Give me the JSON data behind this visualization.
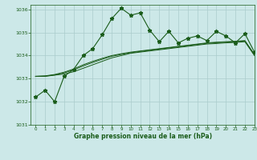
{
  "title": "Graphe pression niveau de la mer (hPa)",
  "bg_color": "#cce8e8",
  "grid_color": "#aacccc",
  "line_color": "#1a5c1a",
  "xlim": [
    -0.5,
    23
  ],
  "ylim": [
    1031.0,
    1036.2
  ],
  "yticks": [
    1031,
    1032,
    1033,
    1034,
    1035,
    1036
  ],
  "xticks": [
    0,
    1,
    2,
    3,
    4,
    5,
    6,
    7,
    8,
    9,
    10,
    11,
    12,
    13,
    14,
    15,
    16,
    17,
    18,
    19,
    20,
    21,
    22,
    23
  ],
  "hours": [
    0,
    1,
    2,
    3,
    4,
    5,
    6,
    7,
    8,
    9,
    10,
    11,
    12,
    13,
    14,
    15,
    16,
    17,
    18,
    19,
    20,
    21,
    22,
    23
  ],
  "pressure_main": [
    1032.2,
    1032.5,
    1032.0,
    1033.1,
    1033.4,
    1034.0,
    1034.3,
    1034.9,
    1035.6,
    1036.05,
    1035.75,
    1035.85,
    1035.1,
    1034.6,
    1035.05,
    1034.55,
    1034.75,
    1034.85,
    1034.65,
    1035.05,
    1034.85,
    1034.55,
    1034.95,
    1034.15
  ],
  "pressure_smooth1": [
    1033.1,
    1033.1,
    1033.15,
    1033.2,
    1033.3,
    1033.45,
    1033.6,
    1033.75,
    1033.9,
    1034.0,
    1034.1,
    1034.15,
    1034.2,
    1034.25,
    1034.3,
    1034.35,
    1034.4,
    1034.45,
    1034.5,
    1034.52,
    1034.55,
    1034.57,
    1034.6,
    1034.0
  ],
  "pressure_smooth2": [
    1033.1,
    1033.12,
    1033.18,
    1033.28,
    1033.42,
    1033.6,
    1033.75,
    1033.88,
    1034.0,
    1034.08,
    1034.15,
    1034.2,
    1034.25,
    1034.3,
    1034.35,
    1034.4,
    1034.45,
    1034.5,
    1034.55,
    1034.58,
    1034.6,
    1034.62,
    1034.65,
    1034.05
  ],
  "pressure_smooth3": [
    1033.1,
    1033.11,
    1033.16,
    1033.25,
    1033.38,
    1033.55,
    1033.7,
    1033.84,
    1033.97,
    1034.05,
    1034.12,
    1034.18,
    1034.23,
    1034.28,
    1034.33,
    1034.38,
    1034.43,
    1034.48,
    1034.53,
    1034.56,
    1034.58,
    1034.6,
    1034.63,
    1034.03
  ]
}
